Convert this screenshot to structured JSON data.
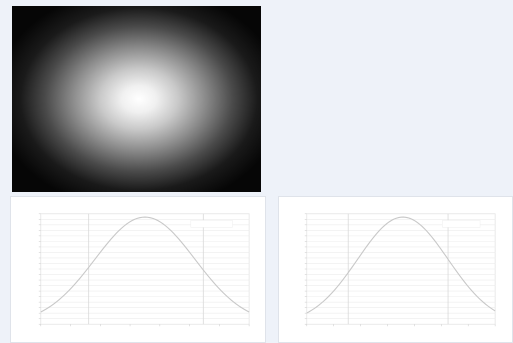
{
  "beam_image": {
    "icon": "beam-profile-image"
  },
  "profiles": [
    {
      "id": "horizontal",
      "legend": "",
      "xlabel": "",
      "ylabel": "",
      "chart_data": {
        "type": "line",
        "x_range": [
          0,
          1
        ],
        "y_range": [
          0,
          1
        ],
        "grid": true,
        "series_color": "#c8c8c8",
        "markers_at_fraction": [
          0.23,
          0.78
        ],
        "peak_at_fraction": 0.5
      }
    },
    {
      "id": "vertical",
      "legend": "",
      "xlabel": "",
      "ylabel": "",
      "chart_data": {
        "type": "line",
        "x_range": [
          0,
          1
        ],
        "y_range": [
          0,
          1
        ],
        "grid": true,
        "series_color": "#c8c8c8",
        "markers_at_fraction": [
          0.22,
          0.75
        ],
        "peak_at_fraction": 0.51
      }
    }
  ]
}
